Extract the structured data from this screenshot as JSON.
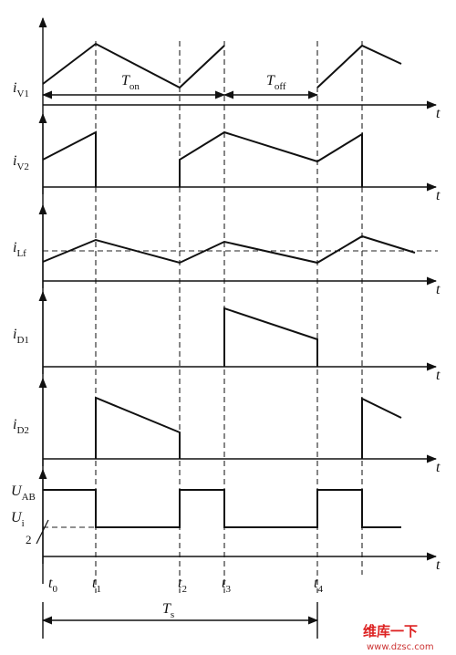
{
  "signals": [
    {
      "main": "i",
      "sub": "V1"
    },
    {
      "main": "i",
      "sub": "V2"
    },
    {
      "main": "i",
      "sub": "Lf"
    },
    {
      "main": "i",
      "sub": "D1"
    },
    {
      "main": "i",
      "sub": "D2"
    },
    {
      "main": "U",
      "sub": "AB"
    }
  ],
  "half_voltage": {
    "main": "U",
    "sub": "i",
    "denominator": "2"
  },
  "time_axis_label": "t",
  "intervals": [
    {
      "main": "T",
      "sub": "on"
    },
    {
      "main": "T",
      "sub": "off"
    },
    {
      "main": "T",
      "sub": "s"
    }
  ],
  "instants": [
    {
      "main": "t",
      "sub": "0"
    },
    {
      "main": "t",
      "sub": "1"
    },
    {
      "main": "t",
      "sub": "2"
    },
    {
      "main": "t",
      "sub": "3"
    },
    {
      "main": "t",
      "sub": "4"
    }
  ],
  "watermark": {
    "brand": "维库一下",
    "url": "www.dzsc.com"
  }
}
